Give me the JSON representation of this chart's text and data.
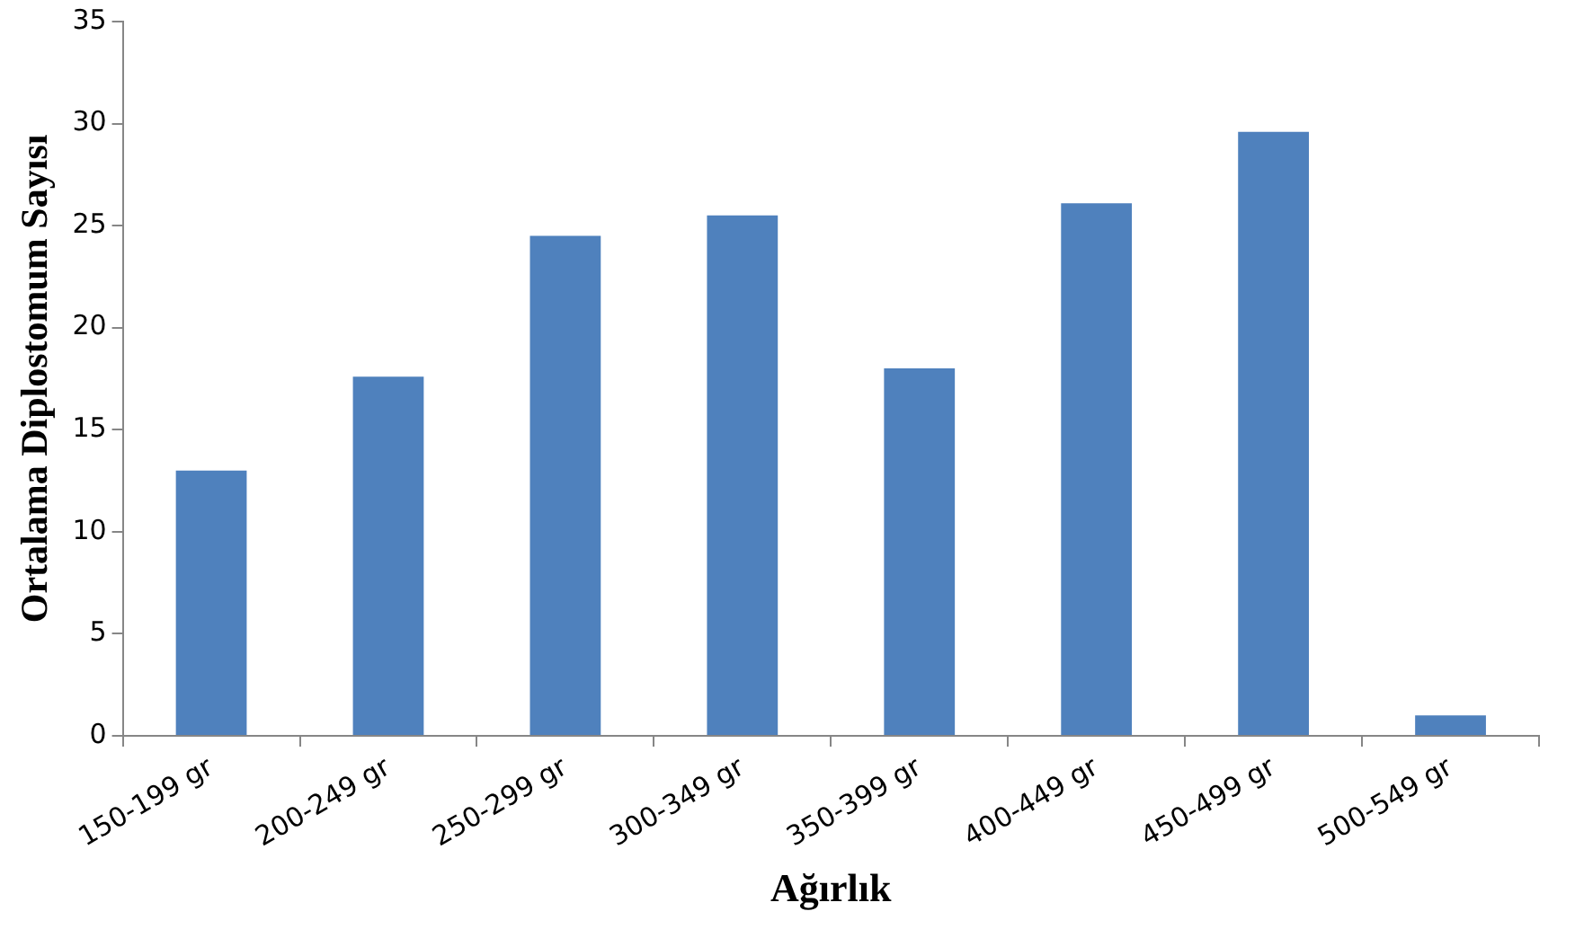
{
  "chart_data": {
    "type": "bar",
    "xlabel": "Ağırlık",
    "ylabel": "Ortalama Diplostomum Sayısı",
    "categories": [
      "150-199 gr",
      "200-249 gr",
      "250-299 gr",
      "300-349 gr",
      "350-399 gr",
      "400-449 gr",
      "450-499 gr",
      "500-549 gr"
    ],
    "values": [
      13,
      17.6,
      24.5,
      25.5,
      18,
      26.1,
      29.6,
      1
    ],
    "color": "#4f81bd",
    "ylim": [
      0,
      35
    ],
    "yticks": [
      0,
      5,
      10,
      15,
      20,
      25,
      30,
      35
    ],
    "grid": false,
    "legend": false
  }
}
